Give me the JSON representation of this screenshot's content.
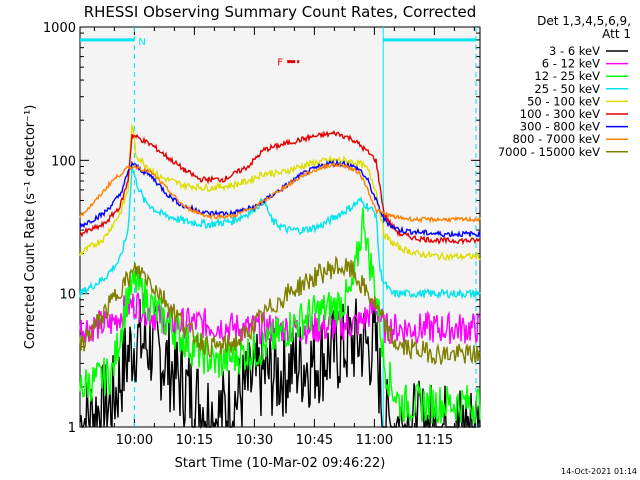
{
  "chart_data": {
    "type": "line",
    "title": "RHESSI Observing Summary Count Rates, Corrected",
    "xlabel": "Start Time (10-Mar-02 09:46:22)",
    "ylabel": "Corrected Count Rate (s⁻¹ detector⁻¹)",
    "yscale": "log",
    "ylim": [
      1,
      1000
    ],
    "xlim_minutes_after_start": [
      0,
      100
    ],
    "x_ticks": [
      {
        "label": "10:00",
        "t": 13.6
      },
      {
        "label": "10:15",
        "t": 28.6
      },
      {
        "label": "10:30",
        "t": 43.6
      },
      {
        "label": "10:45",
        "t": 58.6
      },
      {
        "label": "11:00",
        "t": 73.6
      },
      {
        "label": "11:15",
        "t": 88.6
      }
    ],
    "y_ticks": [
      {
        "label": "1",
        "v": 1
      },
      {
        "label": "10",
        "v": 10
      },
      {
        "label": "100",
        "v": 100
      },
      {
        "label": "1000",
        "v": 1000
      }
    ],
    "legend_header": [
      "Det 1,3,4,5,6,9,",
      "Att 1"
    ],
    "legend_position": "right",
    "timestamp": "14-Oct-2021 01:14",
    "annotations": [
      {
        "label": "N",
        "color": "#00e5ee"
      },
      {
        "label": "F",
        "color": "#e00000"
      }
    ],
    "series": [
      {
        "name": "3 - 6 keV",
        "color": "#000000",
        "x": [
          0,
          8,
          12,
          14,
          18,
          22,
          26,
          30,
          34,
          38,
          42,
          46,
          50,
          54,
          58,
          62,
          66,
          70,
          72,
          74,
          76,
          78,
          80,
          84,
          88,
          92,
          96,
          100
        ],
        "y": [
          1.1,
          1.5,
          3.5,
          4.5,
          4.0,
          3.0,
          2.0,
          1.5,
          1.2,
          1.5,
          2.0,
          2.5,
          2.5,
          3.0,
          3.0,
          3.5,
          4.0,
          4.5,
          4.0,
          4.0,
          1.1,
          1.0,
          1.1,
          1.0,
          1.0,
          1.0,
          1.0,
          1.0
        ]
      },
      {
        "name": "6 - 12 keV",
        "color": "#ff00ff",
        "x": [
          0,
          8,
          12,
          14,
          18,
          24,
          30,
          40,
          50,
          60,
          70,
          74,
          76,
          80,
          90,
          100
        ],
        "y": [
          5.5,
          6.0,
          8.0,
          8.5,
          7.0,
          6.0,
          6.0,
          5.5,
          5.5,
          5.5,
          6.0,
          8.0,
          5.5,
          5.5,
          5.5,
          5.5
        ]
      },
      {
        "name": "12 - 25 keV",
        "color": "#00ff00",
        "x": [
          0,
          8,
          12,
          14,
          18,
          22,
          28,
          34,
          40,
          46,
          52,
          58,
          64,
          68,
          70,
          71,
          72,
          73,
          74,
          75,
          76,
          78,
          80,
          84,
          90,
          100
        ],
        "y": [
          2.0,
          2.5,
          10.0,
          12.0,
          8.0,
          6.0,
          4.0,
          3.0,
          3.5,
          4.0,
          5.5,
          7.0,
          8.0,
          10.0,
          25.0,
          40.0,
          20.0,
          15.0,
          10.0,
          6.0,
          3.0,
          2.0,
          1.5,
          1.5,
          1.5,
          1.5
        ]
      },
      {
        "name": "25 - 50 keV",
        "color": "#00e5ee",
        "x": [
          0,
          6,
          10,
          12,
          13,
          14,
          16,
          20,
          26,
          32,
          38,
          42,
          46,
          48,
          52,
          56,
          60,
          64,
          68,
          70,
          72,
          74,
          75,
          76,
          78,
          80,
          84,
          90,
          100
        ],
        "y": [
          10.0,
          13.0,
          18.0,
          30.0,
          90.0,
          70.0,
          50.0,
          40.0,
          35.0,
          33.0,
          35.0,
          40.0,
          50.0,
          35.0,
          30.0,
          30.0,
          32.0,
          38.0,
          45.0,
          50.0,
          45.0,
          40.0,
          15.0,
          12.0,
          10.0,
          10.0,
          10.0,
          10.0,
          10.0
        ]
      },
      {
        "name": "50 - 100 keV",
        "color": "#dddd00",
        "x": [
          0,
          6,
          10,
          12,
          13,
          14,
          16,
          20,
          26,
          32,
          38,
          42,
          46,
          50,
          54,
          58,
          62,
          66,
          70,
          72,
          74,
          76,
          78,
          80,
          84,
          90,
          100
        ],
        "y": [
          20.0,
          26.0,
          40.0,
          60.0,
          190.0,
          110.0,
          95.0,
          75.0,
          65.0,
          62.0,
          65.0,
          70.0,
          80.0,
          80.0,
          88.0,
          95.0,
          100.0,
          100.0,
          95.0,
          85.0,
          60.0,
          28.0,
          24.0,
          22.0,
          20.0,
          19.0,
          19.0
        ]
      },
      {
        "name": "100 - 300 keV",
        "color": "#e00000",
        "x": [
          0,
          6,
          10,
          12,
          13,
          14,
          18,
          22,
          26,
          30,
          36,
          42,
          46,
          52,
          58,
          64,
          68,
          70,
          72,
          74,
          76,
          78,
          80,
          84,
          90,
          100
        ],
        "y": [
          28.0,
          33.0,
          45.0,
          70.0,
          155.0,
          150.0,
          130.0,
          105.0,
          85.0,
          72.0,
          72.0,
          90.0,
          120.0,
          135.0,
          150.0,
          160.0,
          145.0,
          130.0,
          115.0,
          100.0,
          40.0,
          32.0,
          28.0,
          26.0,
          25.0,
          25.0
        ]
      },
      {
        "name": "300 - 800 keV",
        "color": "#0000ff",
        "x": [
          0,
          6,
          10,
          12,
          13,
          14,
          18,
          22,
          26,
          32,
          38,
          44,
          50,
          56,
          62,
          66,
          68,
          70,
          72,
          74,
          76,
          78,
          80,
          84,
          90,
          100
        ],
        "y": [
          32.0,
          40.0,
          55.0,
          80.0,
          95.0,
          90.0,
          75.0,
          55.0,
          45.0,
          40.0,
          40.0,
          45.0,
          60.0,
          80.0,
          95.0,
          95.0,
          90.0,
          85.0,
          70.0,
          50.0,
          36.0,
          32.0,
          30.0,
          29.0,
          28.0,
          28.0
        ]
      },
      {
        "name": "800 - 7000 keV",
        "color": "#ff8000",
        "x": [
          0,
          4,
          8,
          12,
          14,
          18,
          22,
          26,
          32,
          38,
          44,
          50,
          56,
          62,
          66,
          70,
          72,
          74,
          76,
          78,
          80,
          84,
          90,
          100
        ],
        "y": [
          38.0,
          50.0,
          70.0,
          88.0,
          90.0,
          80.0,
          60.0,
          45.0,
          38.0,
          38.0,
          45.0,
          60.0,
          78.0,
          92.0,
          92.0,
          80.0,
          60.0,
          42.0,
          40.0,
          38.0,
          37.0,
          36.0,
          36.0,
          36.0
        ]
      },
      {
        "name": "7000 - 15000 keV",
        "color": "#808000",
        "x": [
          0,
          6,
          10,
          14,
          16,
          20,
          24,
          28,
          32,
          36,
          40,
          44,
          48,
          52,
          56,
          60,
          64,
          68,
          70,
          72,
          74,
          76,
          78,
          80,
          84,
          90,
          100
        ],
        "y": [
          4.0,
          7.0,
          11.0,
          15.0,
          14.0,
          10.0,
          7.0,
          5.0,
          4.0,
          4.0,
          4.5,
          6.0,
          8.0,
          10.0,
          12.0,
          14.0,
          16.0,
          15.0,
          12.0,
          10.0,
          8.0,
          6.0,
          4.5,
          4.0,
          3.8,
          3.5,
          3.5
        ]
      }
    ],
    "events": {
      "night_line": {
        "x": [
          0,
          13.6
        ],
        "y": 800,
        "color": "#00e5ee"
      },
      "flare_line": {
        "x": [
          51.8,
          54.8
        ],
        "y": 550,
        "color": "#e00000"
      },
      "night_line_2": {
        "x": [
          75.8,
          99
        ],
        "y": 800,
        "color": "#00e5ee"
      }
    }
  }
}
